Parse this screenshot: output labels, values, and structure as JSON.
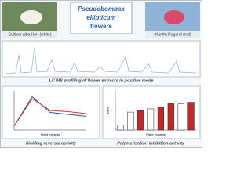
{
  "header": {
    "title_line1": "Pseudobombax",
    "title_line2": "ellipticum",
    "title_line3": "flowers"
  },
  "photos": [
    {
      "caption": "Cultivar alba Hort (white)"
    },
    {
      "caption": "(Kunth) Dugand (red)"
    }
  ],
  "lcms": {
    "caption": "LC-MS profiling of flower extracts in positive mode"
  },
  "chart_data": [
    {
      "type": "line",
      "title": "Sickling reversal activity",
      "x_label": "Plant extracts",
      "categories": [
        null,
        null,
        null,
        null,
        null
      ],
      "series": [
        {
          "color": "#2e4fb8",
          "values": [
            10,
            85,
            45,
            40,
            35
          ]
        },
        {
          "color": "#d8322a",
          "values": [
            10,
            80,
            50,
            47,
            42
          ]
        }
      ],
      "ylim": [
        0,
        100
      ]
    },
    {
      "type": "bar",
      "title": "Polymerization inhibition activity",
      "x_label": "Plant extracts",
      "y_label": "IRP%",
      "categories": [
        null,
        null,
        null,
        null,
        null,
        null,
        null,
        null
      ],
      "values": [
        0.15,
        0.55,
        0.6,
        0.65,
        0.7,
        0.82,
        0.8,
        0.85
      ],
      "colors": [
        "#ffffff",
        "#ffffff",
        "#c0282a",
        "#ffffff",
        "#c0282a",
        "#c0282a",
        "#ffffff",
        "#c0282a"
      ],
      "ylim": [
        0,
        1.2
      ]
    }
  ]
}
